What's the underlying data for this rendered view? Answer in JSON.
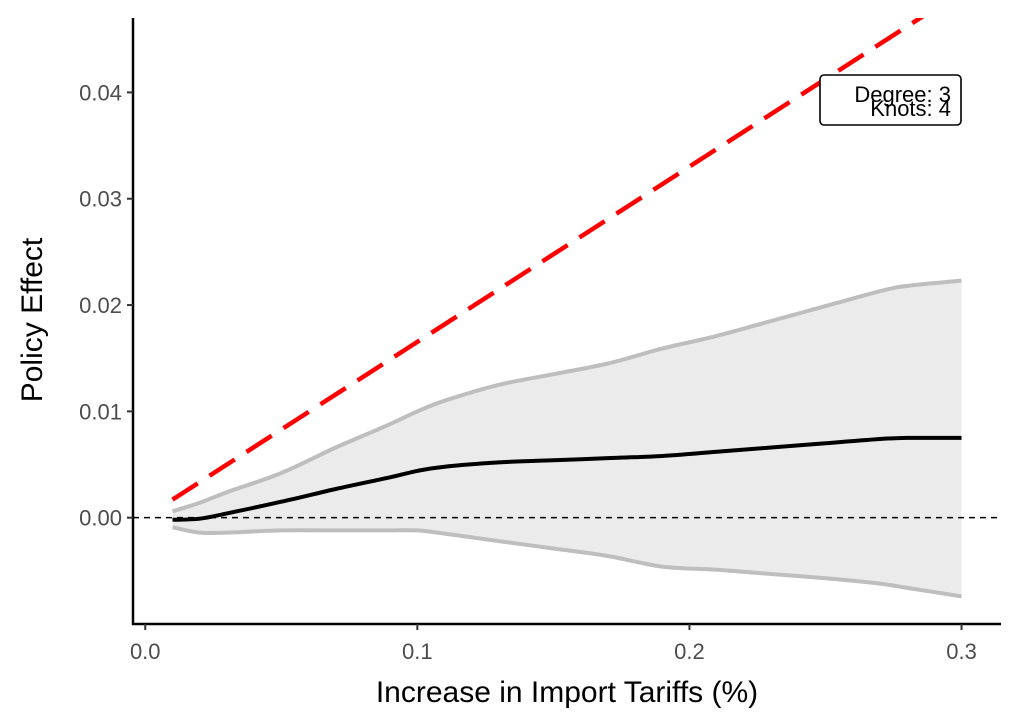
{
  "chart_data": {
    "type": "line",
    "title": "",
    "xlabel": "Increase in Import Tariffs (%)",
    "ylabel": "Policy Effect",
    "xlim": [
      -0.0045,
      0.3145
    ],
    "ylim": [
      -0.01,
      0.047
    ],
    "x_ticks": [
      0.0,
      0.1,
      0.2,
      0.3
    ],
    "x_tick_labels": [
      "0.0",
      "0.1",
      "0.2",
      "0.3"
    ],
    "y_ticks": [
      0.0,
      0.01,
      0.02,
      0.03,
      0.04
    ],
    "y_tick_labels": [
      "0.00",
      "0.01",
      "0.02",
      "0.03",
      "0.04"
    ],
    "grid": false,
    "reference_line": {
      "y": 0.0,
      "style": "dashed",
      "color": "#000000"
    },
    "annotation_box": {
      "lines": [
        "Degree: 3",
        "Knots: 4"
      ],
      "placement": "top-right"
    },
    "series": [
      {
        "role": "estimate",
        "color": "#000000",
        "style": "solid",
        "x": [
          0.01,
          0.02,
          0.03,
          0.05,
          0.07,
          0.09,
          0.1,
          0.11,
          0.13,
          0.15,
          0.17,
          0.19,
          0.21,
          0.23,
          0.25,
          0.27,
          0.28,
          0.3
        ],
        "y": [
          -0.0002,
          -0.0001,
          0.0004,
          0.0015,
          0.0027,
          0.0038,
          0.0044,
          0.0048,
          0.0052,
          0.0054,
          0.0056,
          0.0058,
          0.0062,
          0.0066,
          0.007,
          0.0074,
          0.0075,
          0.0075
        ]
      },
      {
        "role": "upper-bound",
        "color": "#bebebe",
        "style": "solid",
        "x": [
          0.01,
          0.02,
          0.03,
          0.05,
          0.07,
          0.09,
          0.1,
          0.11,
          0.13,
          0.15,
          0.17,
          0.19,
          0.21,
          0.23,
          0.25,
          0.27,
          0.28,
          0.3
        ],
        "y": [
          0.0006,
          0.0014,
          0.0024,
          0.0042,
          0.0066,
          0.0088,
          0.01,
          0.011,
          0.0125,
          0.0135,
          0.0145,
          0.0159,
          0.0171,
          0.0185,
          0.0199,
          0.0213,
          0.0218,
          0.0223
        ]
      },
      {
        "role": "lower-bound",
        "color": "#bebebe",
        "style": "solid",
        "x": [
          0.01,
          0.02,
          0.03,
          0.05,
          0.07,
          0.09,
          0.1,
          0.11,
          0.13,
          0.15,
          0.17,
          0.19,
          0.21,
          0.23,
          0.25,
          0.27,
          0.28,
          0.3
        ],
        "y": [
          -0.0009,
          -0.0014,
          -0.0014,
          -0.0012,
          -0.0012,
          -0.0012,
          -0.0012,
          -0.0015,
          -0.0022,
          -0.0029,
          -0.0036,
          -0.0046,
          -0.0049,
          -0.0053,
          -0.0057,
          -0.0062,
          -0.0066,
          -0.0074
        ]
      },
      {
        "role": "reference-linear",
        "color": "#ff0000",
        "style": "dashed",
        "x": [
          0.01,
          0.3
        ],
        "y": [
          0.0017,
          0.0495
        ]
      }
    ],
    "band": {
      "fill": "#ebebeb",
      "between": [
        "lower-bound",
        "upper-bound"
      ]
    }
  }
}
